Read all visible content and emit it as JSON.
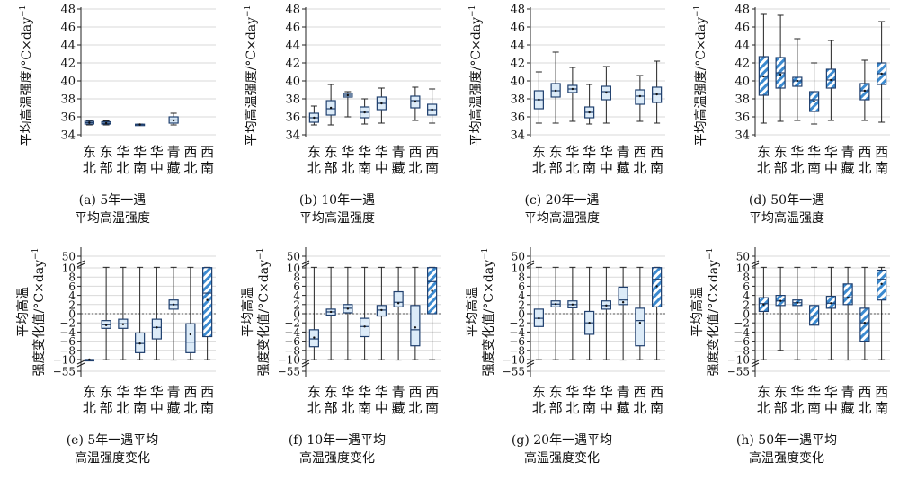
{
  "regions": [
    "东北",
    "东部",
    "华北",
    "华南",
    "华中",
    "青藏",
    "西北",
    "西南"
  ],
  "colors": {
    "box_stroke": "#1f3f6e",
    "box_fill": "#dcebf8",
    "hatch": "#3b8ad0",
    "grid": "#d9d9d9",
    "zero_line": "#555555"
  },
  "chart_data": [
    {
      "id": "a",
      "type": "box",
      "caption_line1": "(a) 5年一遇",
      "caption_line2": "平均高温强度",
      "ylabel": "平均高温强度/°C×day",
      "ylabel_sup": "−1",
      "ylim": [
        34,
        48
      ],
      "yticks": [
        34,
        36,
        38,
        40,
        42,
        44,
        46,
        48
      ],
      "yticklabels": [
        "34",
        "36",
        "38",
        "40",
        "42",
        "44",
        "46",
        "48"
      ],
      "grid": true,
      "zero_line": false,
      "hatched": [],
      "boxes": [
        {
          "min": 35.1,
          "q1": 35.2,
          "median": 35.35,
          "q3": 35.5,
          "max": 35.6,
          "mean": 35.35
        },
        {
          "min": 35.1,
          "q1": 35.2,
          "median": 35.3,
          "q3": 35.45,
          "max": 35.55,
          "mean": 35.3
        },
        null,
        {
          "min": 35.1,
          "q1": 35.12,
          "median": 35.15,
          "q3": 35.18,
          "max": 35.2,
          "mean": 35.15
        },
        null,
        {
          "min": 35.1,
          "q1": 35.3,
          "median": 35.65,
          "q3": 36.0,
          "max": 36.4,
          "mean": 35.6
        },
        null,
        null
      ]
    },
    {
      "id": "b",
      "type": "box",
      "caption_line1": "(b) 10年一遇",
      "caption_line2": "平均高温强度",
      "ylabel": "平均高温强度/°C×day",
      "ylabel_sup": "−1",
      "ylim": [
        34,
        48
      ],
      "yticks": [
        34,
        36,
        38,
        40,
        42,
        44,
        46,
        48
      ],
      "yticklabels": [
        "34",
        "36",
        "38",
        "40",
        "42",
        "44",
        "46",
        "48"
      ],
      "grid": true,
      "zero_line": false,
      "hatched": [],
      "boxes": [
        {
          "min": 35.1,
          "q1": 35.4,
          "median": 35.9,
          "q3": 36.4,
          "max": 37.2,
          "mean": 35.9
        },
        {
          "min": 35.1,
          "q1": 36.2,
          "median": 36.9,
          "q3": 37.8,
          "max": 39.6,
          "mean": 37.0
        },
        {
          "min": 36.0,
          "q1": 38.2,
          "median": 38.4,
          "q3": 38.6,
          "max": 38.8,
          "mean": 38.4
        },
        {
          "min": 35.2,
          "q1": 35.9,
          "median": 36.5,
          "q3": 37.1,
          "max": 38.0,
          "mean": 36.5
        },
        {
          "min": 35.3,
          "q1": 36.8,
          "median": 37.5,
          "q3": 38.2,
          "max": 39.2,
          "mean": 37.5
        },
        null,
        {
          "min": 35.6,
          "q1": 37.0,
          "median": 37.8,
          "q3": 38.3,
          "max": 39.3,
          "mean": 37.7
        },
        {
          "min": 35.3,
          "q1": 36.2,
          "median": 36.8,
          "q3": 37.4,
          "max": 39.1,
          "mean": 36.8
        }
      ]
    },
    {
      "id": "c",
      "type": "box",
      "caption_line1": "(c) 20年一遇",
      "caption_line2": "平均高温强度",
      "ylabel": "平均高温强度/°C×day",
      "ylabel_sup": "−1",
      "ylim": [
        34,
        48
      ],
      "yticks": [
        34,
        36,
        38,
        40,
        42,
        44,
        46,
        48
      ],
      "yticklabels": [
        "34",
        "36",
        "38",
        "40",
        "42",
        "44",
        "46",
        "48"
      ],
      "grid": true,
      "zero_line": false,
      "hatched": [],
      "boxes": [
        {
          "min": 35.3,
          "q1": 36.9,
          "median": 37.9,
          "q3": 38.9,
          "max": 41.0,
          "mean": 37.9
        },
        {
          "min": 35.3,
          "q1": 38.2,
          "median": 38.9,
          "q3": 39.7,
          "max": 43.2,
          "mean": 38.9
        },
        {
          "min": 35.5,
          "q1": 38.7,
          "median": 39.1,
          "q3": 39.5,
          "max": 41.5,
          "mean": 39.1
        },
        {
          "min": 35.2,
          "q1": 35.9,
          "median": 36.5,
          "q3": 37.1,
          "max": 39.6,
          "mean": 36.5
        },
        {
          "min": 35.3,
          "q1": 37.9,
          "median": 38.8,
          "q3": 39.4,
          "max": 41.6,
          "mean": 38.7
        },
        null,
        {
          "min": 35.5,
          "q1": 37.4,
          "median": 38.3,
          "q3": 39.0,
          "max": 40.6,
          "mean": 38.3
        },
        {
          "min": 35.3,
          "q1": 37.6,
          "median": 38.5,
          "q3": 39.3,
          "max": 42.2,
          "mean": 38.5
        }
      ]
    },
    {
      "id": "d",
      "type": "box",
      "caption_line1": "(d) 50年一遇",
      "caption_line2": "平均高温强度",
      "ylabel": "平均高温强度/°C×day",
      "ylabel_sup": "−1",
      "ylim": [
        34,
        48
      ],
      "yticks": [
        34,
        36,
        38,
        40,
        42,
        44,
        46,
        48
      ],
      "yticklabels": [
        "34",
        "36",
        "38",
        "40",
        "42",
        "44",
        "46",
        "48"
      ],
      "grid": true,
      "zero_line": false,
      "hatched": [
        0,
        1,
        2,
        3,
        4,
        5,
        6,
        7
      ],
      "boxes": [
        {
          "min": 35.3,
          "q1": 38.4,
          "median": 40.5,
          "q3": 42.7,
          "max": 47.4,
          "mean": 40.5
        },
        {
          "min": 35.5,
          "q1": 39.2,
          "median": 40.9,
          "q3": 42.6,
          "max": 47.3,
          "mean": 40.7
        },
        {
          "min": 35.6,
          "q1": 39.4,
          "median": 40.0,
          "q3": 40.4,
          "max": 44.7,
          "mean": 40.0
        },
        {
          "min": 35.2,
          "q1": 36.6,
          "median": 37.9,
          "q3": 38.8,
          "max": 42.0,
          "mean": 37.7
        },
        {
          "min": 35.6,
          "q1": 39.2,
          "median": 40.1,
          "q3": 41.3,
          "max": 44.5,
          "mean": 40.1
        },
        null,
        {
          "min": 35.6,
          "q1": 37.9,
          "median": 38.9,
          "q3": 39.7,
          "max": 42.3,
          "mean": 38.9
        },
        {
          "min": 35.4,
          "q1": 39.6,
          "median": 40.8,
          "q3": 42.0,
          "max": 46.6,
          "mean": 40.8
        }
      ]
    },
    {
      "id": "e",
      "type": "box",
      "caption_line1": "(e) 5年一遇平均",
      "caption_line2": "高温强度变化",
      "ylabel_lines": [
        "平均高温",
        "强度变化值/°C×day"
      ],
      "ylabel_sup": "−1",
      "yticks": [
        -55,
        -10,
        -8,
        -6,
        -4,
        -2,
        0,
        2,
        4,
        6,
        8,
        10,
        50
      ],
      "yticklabels": [
        "−55",
        "−10",
        "−8",
        "−6",
        "−4",
        "−2",
        "0",
        "2",
        "4",
        "6",
        "8",
        "10",
        "50"
      ],
      "grid": true,
      "zero_line": true,
      "hatched": [
        7
      ],
      "boxes": [
        {
          "min": -10,
          "q1": -10,
          "median": -10,
          "q3": -10,
          "max": -10,
          "mean": -10,
          "min_label": -10.5,
          "max_label": 12
        },
        {
          "min": -10.5,
          "q1": -3.2,
          "median": -2.4,
          "q3": -1.5,
          "max": 12,
          "mean": -2.5
        },
        {
          "min": -10.5,
          "q1": -3.2,
          "median": -2.2,
          "q3": -1.2,
          "max": 12,
          "mean": -2.3
        },
        {
          "min": -10.5,
          "q1": -8.5,
          "median": -6.5,
          "q3": -4.2,
          "max": 12,
          "mean": -6.5
        },
        {
          "min": -10.5,
          "q1": -5.5,
          "median": -3.0,
          "q3": -1.2,
          "max": 12,
          "mean": -3.0
        },
        {
          "min": -12,
          "q1": 1.0,
          "median": 2.0,
          "q3": 3.0,
          "max": 12,
          "mean": 2.0
        },
        {
          "min": -10.5,
          "q1": -8.5,
          "median": -6.2,
          "q3": -2.2,
          "max": 12,
          "mean": -4.5
        },
        {
          "min": -10.5,
          "q1": -5.0,
          "median": 4.5,
          "q3": 11.0,
          "max": 12,
          "mean": 3.0
        }
      ]
    },
    {
      "id": "f",
      "type": "box",
      "caption_line1": "(f) 10年一遇平均",
      "caption_line2": "高温强度变化",
      "ylabel_lines": [
        "平均高温",
        "强度变化值/°C×day"
      ],
      "ylabel_sup": "−1",
      "yticks": [
        -55,
        -10,
        -8,
        -6,
        -4,
        -2,
        0,
        2,
        4,
        6,
        8,
        10,
        50
      ],
      "yticklabels": [
        "−55",
        "−10",
        "−8",
        "−6",
        "−4",
        "−2",
        "0",
        "2",
        "4",
        "6",
        "8",
        "10",
        "50"
      ],
      "grid": true,
      "zero_line": true,
      "hatched": [
        7
      ],
      "boxes": [
        {
          "min": -10.5,
          "q1": -7.2,
          "median": -5.5,
          "q3": -3.5,
          "max": 12,
          "mean": -5.2
        },
        {
          "min": -10.5,
          "q1": -0.3,
          "median": 0.4,
          "q3": 1.0,
          "max": 12,
          "mean": 0.4
        },
        {
          "min": -10.5,
          "q1": 0.2,
          "median": 1.2,
          "q3": 2.0,
          "max": 12,
          "mean": 1.1
        },
        {
          "min": -10.5,
          "q1": -5.0,
          "median": -2.8,
          "q3": -1.0,
          "max": 12,
          "mean": -2.8
        },
        {
          "min": -10.5,
          "q1": -0.5,
          "median": 0.8,
          "q3": 1.8,
          "max": 12,
          "mean": 0.8
        },
        {
          "min": -12,
          "q1": 1.5,
          "median": 2.5,
          "q3": 4.8,
          "max": 12,
          "mean": 2.3
        },
        {
          "min": -10.5,
          "q1": -7.0,
          "median": -3.5,
          "q3": 1.8,
          "max": 12,
          "mean": -3.0
        },
        {
          "min": -10.5,
          "q1": 0.0,
          "median": 7.0,
          "q3": 11.0,
          "max": 12,
          "mean": 5.0
        }
      ]
    },
    {
      "id": "g",
      "type": "box",
      "caption_line1": "(g) 20年一遇平均",
      "caption_line2": "高温强度变化",
      "ylabel_lines": [
        "平均高温",
        "强度变化值/°C×day"
      ],
      "ylabel_sup": "−1",
      "yticks": [
        -55,
        -10,
        -8,
        -6,
        -4,
        -2,
        0,
        2,
        4,
        6,
        8,
        10,
        50
      ],
      "yticklabels": [
        "−55",
        "−10",
        "−8",
        "−6",
        "−4",
        "−2",
        "0",
        "2",
        "4",
        "6",
        "8",
        "10",
        "50"
      ],
      "grid": true,
      "zero_line": true,
      "hatched": [
        7
      ],
      "boxes": [
        {
          "min": -10.5,
          "q1": -2.8,
          "median": -1.0,
          "q3": 1.0,
          "max": 12,
          "mean": -1.0
        },
        {
          "min": -10.5,
          "q1": 1.5,
          "median": 2.1,
          "q3": 2.8,
          "max": 12,
          "mean": 2.1
        },
        {
          "min": -10.5,
          "q1": 1.3,
          "median": 2.0,
          "q3": 2.8,
          "max": 12,
          "mean": 2.0
        },
        {
          "min": -10.5,
          "q1": -4.5,
          "median": -2.0,
          "q3": 0.5,
          "max": 12,
          "mean": -2.0
        },
        {
          "min": -10.5,
          "q1": 1.0,
          "median": 1.8,
          "q3": 2.8,
          "max": 12,
          "mean": 1.8
        },
        {
          "min": -12,
          "q1": 2.0,
          "median": 3.0,
          "q3": 5.8,
          "max": 12,
          "mean": 2.5
        },
        {
          "min": -10.5,
          "q1": -7.0,
          "median": -1.5,
          "q3": 1.2,
          "max": 12,
          "mean": -2.0
        },
        {
          "min": -10.5,
          "q1": 1.5,
          "median": 7.5,
          "q3": 11.0,
          "max": 12,
          "mean": 6.0
        }
      ]
    },
    {
      "id": "h",
      "type": "box",
      "caption_line1": "(h) 50年一遇平均",
      "caption_line2": "高温强度变化",
      "ylabel_lines": [
        "平均高温",
        "强度变化值/°C×day"
      ],
      "ylabel_sup": "−1",
      "yticks": [
        -55,
        -10,
        -8,
        -6,
        -4,
        -2,
        0,
        2,
        4,
        6,
        8,
        10,
        50
      ],
      "yticklabels": [
        "−55",
        "−10",
        "−8",
        "−6",
        "−4",
        "−2",
        "0",
        "2",
        "4",
        "6",
        "8",
        "10",
        "50"
      ],
      "grid": true,
      "zero_line": true,
      "hatched": [
        0,
        1,
        2,
        3,
        4,
        5,
        6,
        7
      ],
      "boxes": [
        {
          "min": -10.5,
          "q1": 0.5,
          "median": 2.2,
          "q3": 3.5,
          "max": 12,
          "mean": 2.0
        },
        {
          "min": -8.0,
          "q1": 1.8,
          "median": 2.8,
          "q3": 4.0,
          "max": 12,
          "mean": 2.8
        },
        {
          "min": -10.5,
          "q1": 1.8,
          "median": 2.4,
          "q3": 3.0,
          "max": 12,
          "mean": 2.4
        },
        {
          "min": -10.5,
          "q1": -2.5,
          "median": -0.5,
          "q3": 1.8,
          "max": 12,
          "mean": -0.5
        },
        {
          "min": -10.5,
          "q1": 1.2,
          "median": 2.3,
          "q3": 3.8,
          "max": 12,
          "mean": 2.3
        },
        {
          "min": -12,
          "q1": 2.0,
          "median": 3.5,
          "q3": 6.5,
          "max": 12,
          "mean": 3.5
        },
        {
          "min": -10.5,
          "q1": -6.0,
          "median": -2.0,
          "q3": 1.2,
          "max": 12,
          "mean": -2.0
        },
        {
          "min": -10.5,
          "q1": 3.0,
          "median": 7.5,
          "q3": 9.5,
          "max": 12,
          "mean": 6.5
        }
      ]
    }
  ]
}
